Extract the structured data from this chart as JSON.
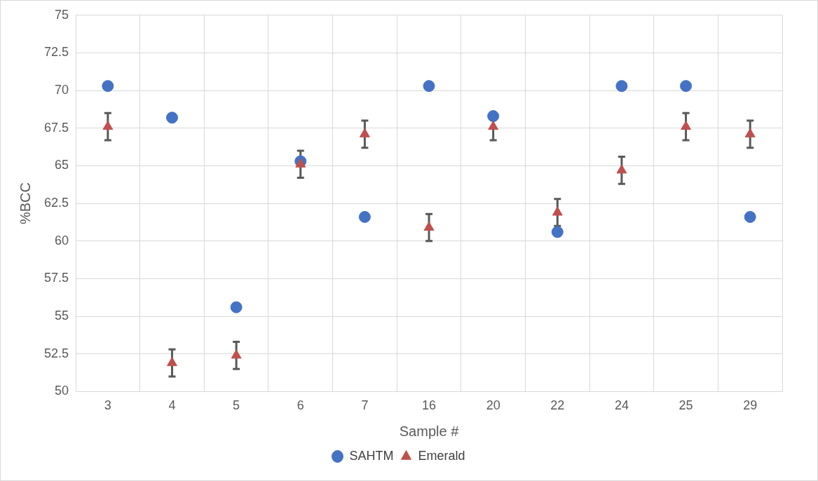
{
  "chart_data": {
    "type": "scatter",
    "xlabel": "Sample #",
    "ylabel": "%BCC",
    "categories": [
      "3",
      "4",
      "5",
      "6",
      "7",
      "16",
      "20",
      "22",
      "24",
      "25",
      "29"
    ],
    "series": [
      {
        "name": "SAHTM",
        "color": "#4472c4",
        "marker": "circle",
        "values": [
          70.3,
          68.2,
          55.6,
          65.3,
          61.6,
          70.3,
          68.3,
          60.6,
          70.3,
          70.3,
          61.6
        ]
      },
      {
        "name": "Emerald",
        "color": "#c0504d",
        "marker": "triangle",
        "values": [
          67.6,
          51.9,
          52.4,
          65.1,
          67.1,
          60.9,
          67.6,
          61.9,
          64.7,
          67.6,
          67.1
        ],
        "errors": [
          0.9,
          0.9,
          0.9,
          0.9,
          0.9,
          0.9,
          0.9,
          0.9,
          0.9,
          0.9,
          0.9
        ]
      }
    ],
    "ylim": [
      50,
      75
    ],
    "yticks": [
      50,
      52.5,
      55,
      57.5,
      60,
      62.5,
      65,
      67.5,
      70,
      72.5,
      75
    ],
    "grid": true,
    "legend": "bottom"
  }
}
